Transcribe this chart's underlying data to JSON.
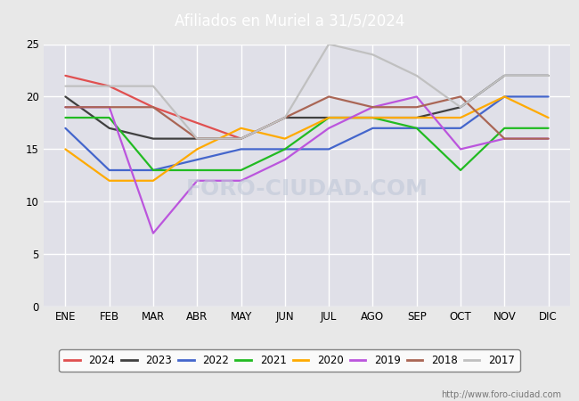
{
  "title": "Afiliados en Muriel a 31/5/2024",
  "title_bg_color": "#5b9bd5",
  "title_text_color": "white",
  "ylim": [
    0,
    25
  ],
  "yticks": [
    0,
    5,
    10,
    15,
    20,
    25
  ],
  "months": [
    "ENE",
    "FEB",
    "MAR",
    "ABR",
    "MAY",
    "JUN",
    "JUL",
    "AGO",
    "SEP",
    "OCT",
    "NOV",
    "DIC"
  ],
  "watermark": "FORO-CIUDAD.COM",
  "url": "http://www.foro-ciudad.com",
  "series": {
    "2024": {
      "color": "#e05050",
      "data": [
        22,
        21,
        19,
        null,
        16,
        null,
        null,
        null,
        null,
        null,
        null,
        null
      ]
    },
    "2023": {
      "color": "#404040",
      "data": [
        20,
        17,
        16,
        16,
        16,
        18,
        18,
        18,
        18,
        19,
        22,
        22
      ]
    },
    "2022": {
      "color": "#4466cc",
      "data": [
        17,
        13,
        13,
        14,
        15,
        15,
        15,
        17,
        17,
        17,
        20,
        20
      ]
    },
    "2021": {
      "color": "#22bb22",
      "data": [
        18,
        18,
        13,
        13,
        13,
        15,
        18,
        18,
        17,
        13,
        17,
        17
      ]
    },
    "2020": {
      "color": "#ffaa00",
      "data": [
        15,
        12,
        12,
        15,
        17,
        16,
        18,
        18,
        18,
        18,
        20,
        18
      ]
    },
    "2019": {
      "color": "#bb55dd",
      "data": [
        19,
        19,
        7,
        12,
        12,
        14,
        17,
        19,
        20,
        15,
        16,
        16
      ]
    },
    "2018": {
      "color": "#aa6655",
      "data": [
        19,
        19,
        19,
        16,
        16,
        18,
        20,
        19,
        19,
        20,
        16,
        16
      ]
    },
    "2017": {
      "color": "#c0c0c0",
      "data": [
        21,
        21,
        21,
        16,
        16,
        18,
        25,
        24,
        22,
        19,
        22,
        22
      ]
    }
  },
  "legend_order": [
    "2024",
    "2023",
    "2022",
    "2021",
    "2020",
    "2019",
    "2018",
    "2017"
  ],
  "bg_color": "#e8e8e8",
  "plot_bg_color": "#e0e0e8",
  "grid_color": "#ffffff",
  "linewidth": 1.6
}
